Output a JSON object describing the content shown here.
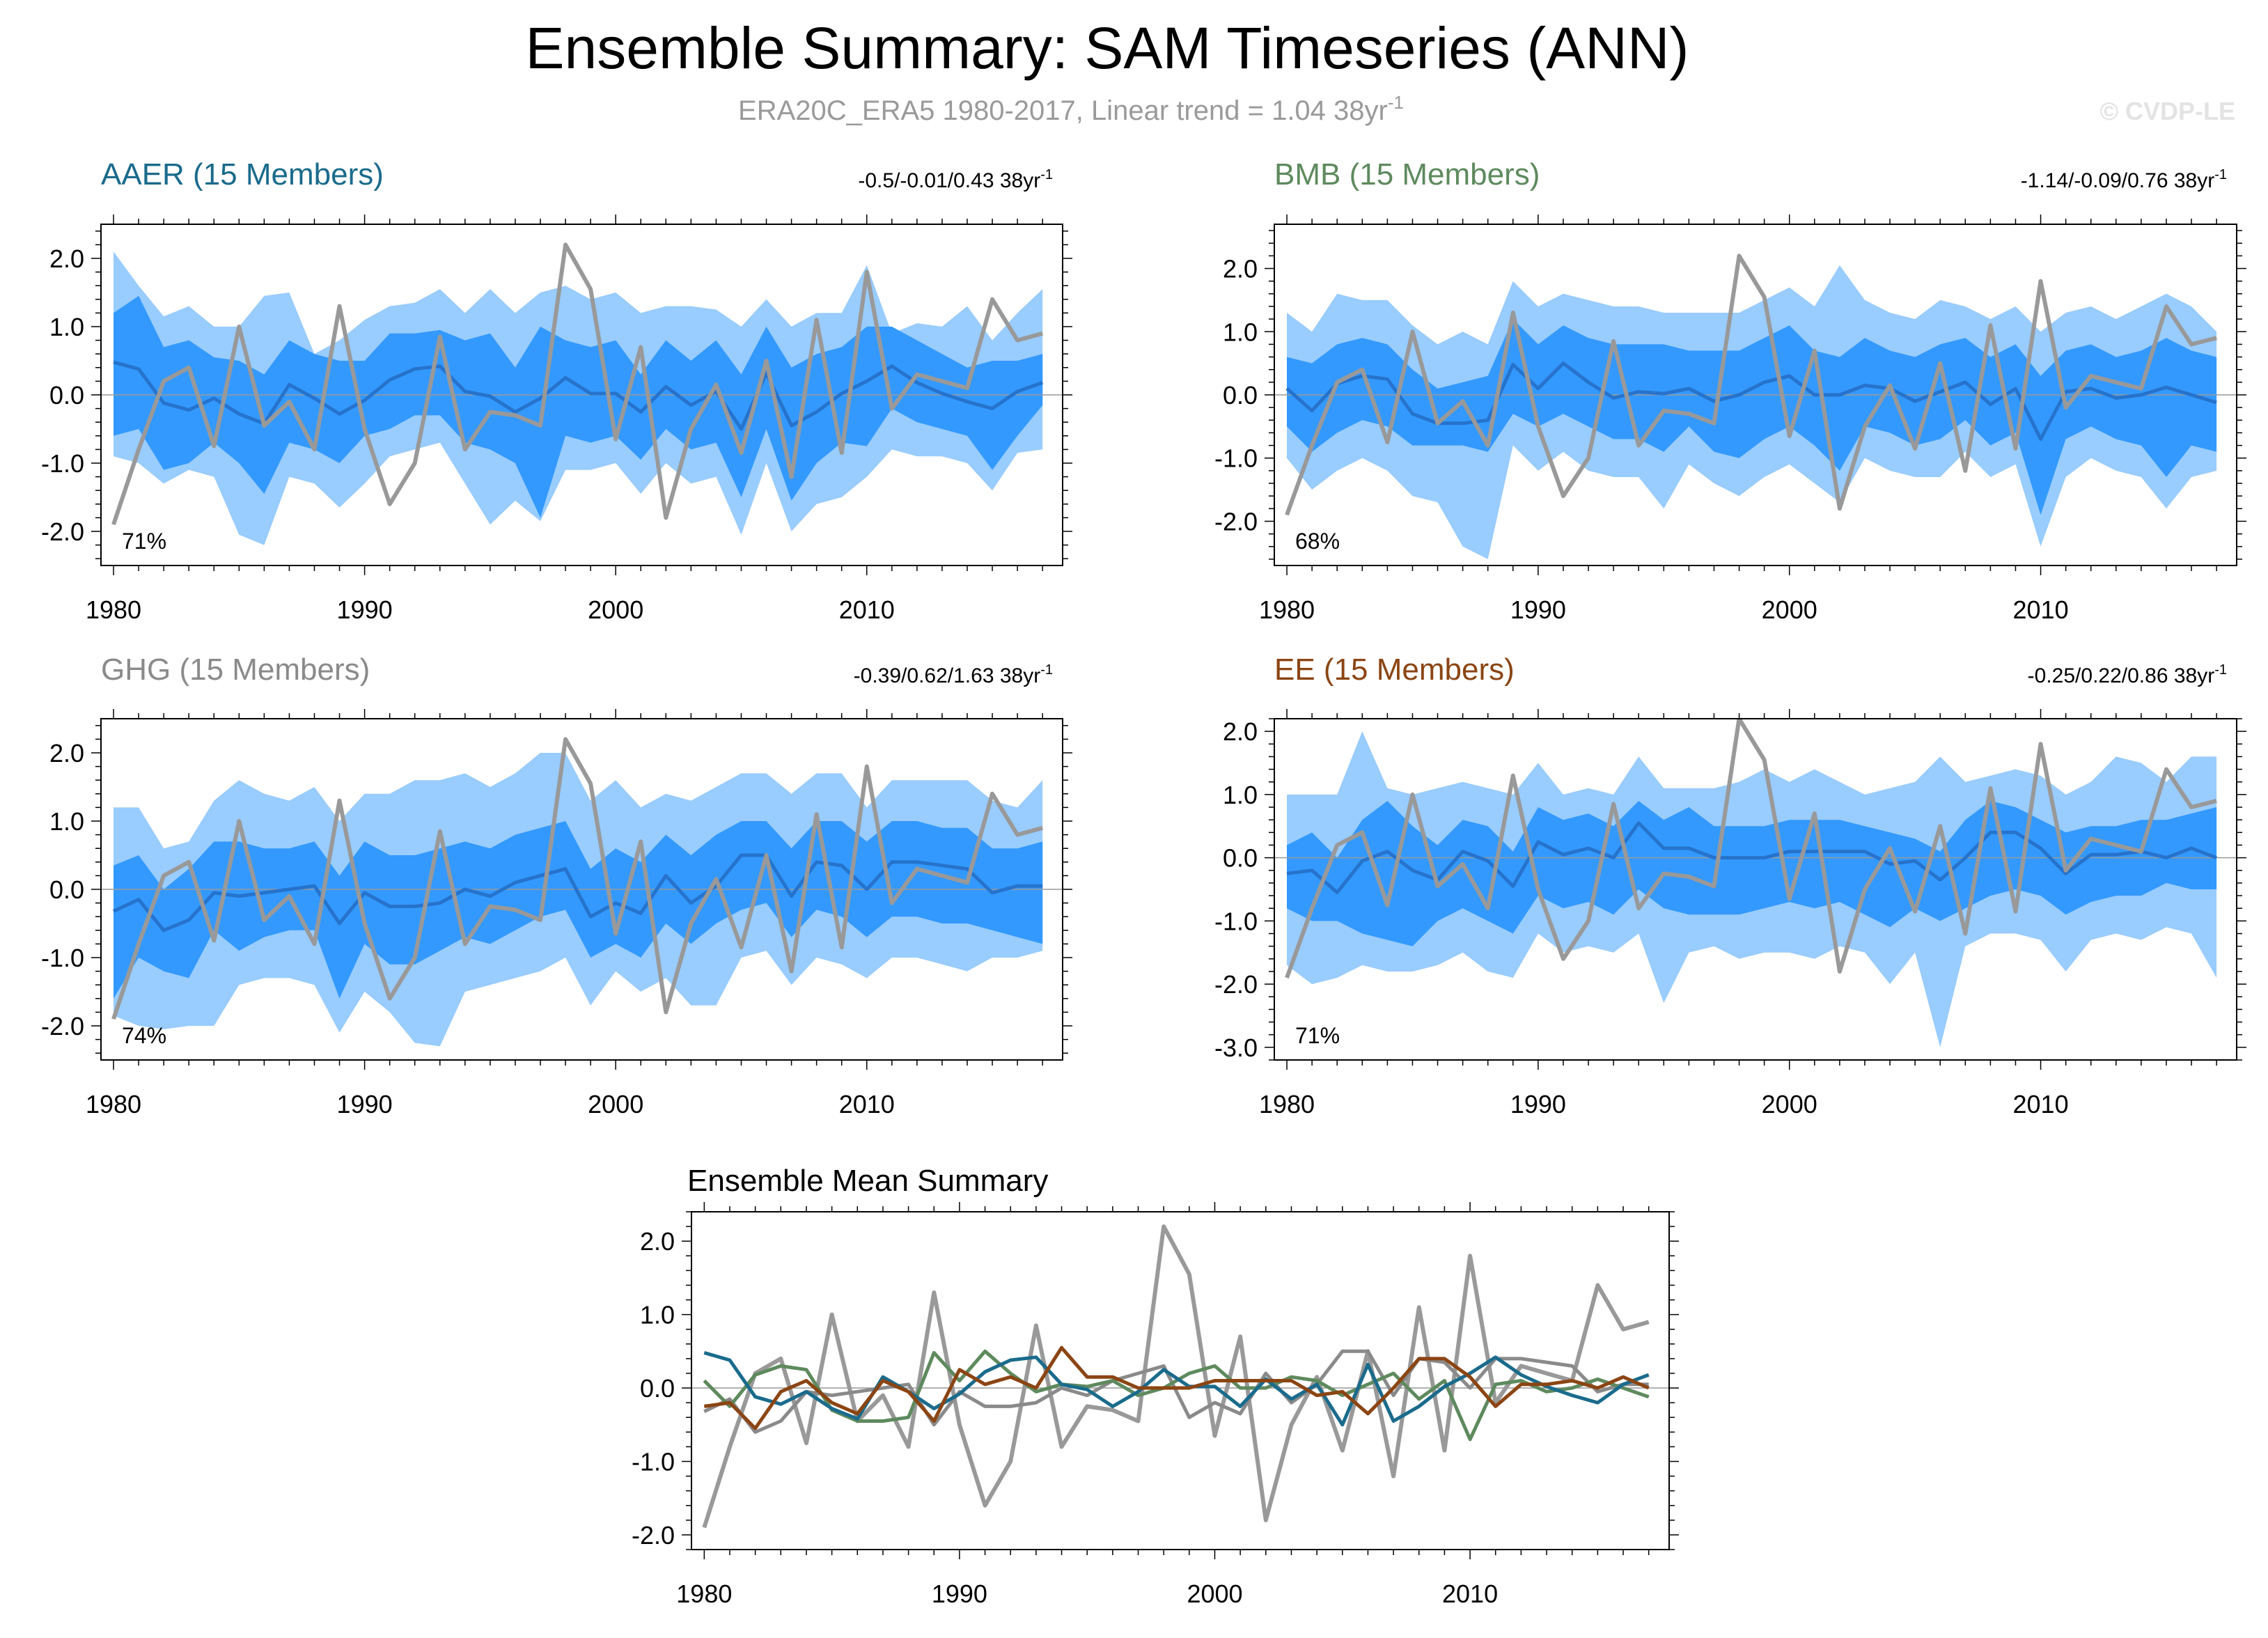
{
  "figure": {
    "title": "Ensemble Summary: SAM Timeseries (ANN)",
    "subtitle_main": "ERA20C_ERA5 1980-2017, Linear trend = 1.04 38yr",
    "subtitle_sup": "-1",
    "watermark": "© CVDP-LE"
  },
  "chart_data": {
    "type": "line",
    "x": [
      1980,
      1981,
      1982,
      1983,
      1984,
      1985,
      1986,
      1987,
      1988,
      1989,
      1990,
      1991,
      1992,
      1993,
      1994,
      1995,
      1996,
      1997,
      1998,
      1999,
      2000,
      2001,
      2002,
      2003,
      2004,
      2005,
      2006,
      2007,
      2008,
      2009,
      2010,
      2011,
      2012,
      2013,
      2014,
      2015,
      2016,
      2017
    ],
    "x_ticks": [
      1980,
      1990,
      2000,
      2010
    ],
    "x_tick_labels": [
      "1980",
      "1990",
      "2000",
      "2010"
    ],
    "observed": {
      "name": "ERA20C_ERA5",
      "color": "#999999",
      "values": [
        -1.9,
        -0.8,
        0.2,
        0.4,
        -0.75,
        1.0,
        -0.45,
        -0.1,
        -0.8,
        1.3,
        -0.5,
        -1.6,
        -1.0,
        0.85,
        -0.8,
        -0.25,
        -0.3,
        -0.45,
        2.2,
        1.55,
        -0.65,
        0.7,
        -1.8,
        -0.5,
        0.15,
        -0.85,
        0.5,
        -1.2,
        1.1,
        -0.85,
        1.8,
        -0.2,
        0.3,
        0.2,
        0.1,
        1.4,
        0.8,
        0.9
      ]
    },
    "panels": [
      {
        "name": "AAER",
        "title": "AAER (15 Members)",
        "color": "#1a6b8c",
        "trend_text": "-0.5/-0.01/0.43 38yr",
        "trend_sup": "-1",
        "percent_label": "71%",
        "ylim": [
          -2.5,
          2.5
        ],
        "yticks": [
          -2.0,
          -1.0,
          0.0,
          1.0,
          2.0
        ],
        "ytick_labels": [
          "-2.0",
          "-1.0",
          "0.0",
          "1.0",
          "2.0"
        ],
        "mean": [
          0.48,
          0.38,
          -0.12,
          -0.22,
          -0.05,
          -0.28,
          -0.42,
          0.15,
          -0.05,
          -0.28,
          -0.08,
          0.22,
          0.38,
          0.42,
          0.05,
          -0.02,
          -0.25,
          -0.05,
          0.25,
          0.02,
          0.02,
          -0.25,
          0.12,
          -0.15,
          0.05,
          -0.5,
          0.32,
          -0.45,
          -0.25,
          0.02,
          0.2,
          0.42,
          0.18,
          0.02,
          -0.1,
          -0.2,
          0.05,
          0.18
        ],
        "inner_low": [
          -0.6,
          -0.5,
          -1.1,
          -1.0,
          -0.7,
          -1.0,
          -1.45,
          -0.7,
          -0.8,
          -1.0,
          -0.6,
          -0.5,
          -0.3,
          -0.3,
          -0.7,
          -0.8,
          -1.0,
          -1.8,
          -0.6,
          -0.7,
          -0.6,
          -0.95,
          -0.5,
          -0.8,
          -0.7,
          -1.5,
          -0.5,
          -1.55,
          -1.0,
          -0.7,
          -0.75,
          -0.2,
          -0.4,
          -0.5,
          -0.6,
          -1.1,
          -0.6,
          -0.15
        ],
        "inner_high": [
          1.2,
          1.45,
          0.7,
          0.8,
          0.55,
          0.5,
          0.3,
          0.8,
          0.6,
          0.5,
          0.5,
          0.9,
          0.9,
          0.95,
          0.8,
          0.9,
          0.4,
          1.0,
          0.8,
          0.7,
          0.8,
          0.3,
          0.8,
          0.5,
          0.8,
          0.3,
          1.0,
          0.4,
          0.6,
          0.7,
          1.0,
          1.0,
          0.8,
          0.6,
          0.4,
          0.5,
          0.5,
          0.6
        ],
        "outer_low": [
          -0.9,
          -1.0,
          -1.3,
          -1.1,
          -1.2,
          -2.05,
          -2.2,
          -1.2,
          -1.3,
          -1.65,
          -1.3,
          -0.9,
          -0.8,
          -0.7,
          -1.3,
          -1.9,
          -1.55,
          -1.85,
          -1.1,
          -1.1,
          -1.0,
          -1.45,
          -1.0,
          -1.3,
          -1.2,
          -2.05,
          -1.0,
          -2.0,
          -1.6,
          -1.5,
          -1.2,
          -0.8,
          -0.9,
          -0.9,
          -1.0,
          -1.4,
          -0.85,
          -0.8
        ],
        "outer_high": [
          2.1,
          1.6,
          1.15,
          1.3,
          1.0,
          1.0,
          1.45,
          1.5,
          0.6,
          0.8,
          1.1,
          1.3,
          1.35,
          1.55,
          1.2,
          1.55,
          1.2,
          1.5,
          1.6,
          1.4,
          1.5,
          1.2,
          1.3,
          1.3,
          1.25,
          1.0,
          1.4,
          1.0,
          1.2,
          1.2,
          1.9,
          0.9,
          1.05,
          1.0,
          1.3,
          0.8,
          1.2,
          1.55
        ]
      },
      {
        "name": "BMB",
        "title": "BMB (15 Members)",
        "color": "#5e8a5e",
        "trend_text": "-1.14/-0.09/0.76 38yr",
        "trend_sup": "-1",
        "percent_label": "68%",
        "ylim": [
          -2.7,
          2.7
        ],
        "yticks": [
          -2.0,
          -1.0,
          0.0,
          1.0,
          2.0
        ],
        "ytick_labels": [
          "-2.0",
          "-1.0",
          "0.0",
          "1.0",
          "2.0"
        ],
        "mean": [
          0.1,
          -0.25,
          0.18,
          0.3,
          0.25,
          -0.3,
          -0.45,
          -0.45,
          -0.4,
          0.48,
          0.1,
          0.5,
          0.2,
          -0.05,
          0.05,
          0.02,
          0.1,
          -0.1,
          0.0,
          0.2,
          0.3,
          0.0,
          0.0,
          0.15,
          0.1,
          -0.1,
          0.05,
          0.2,
          -0.15,
          0.1,
          -0.7,
          0.05,
          0.1,
          -0.05,
          0.0,
          0.12,
          0.0,
          -0.12
        ],
        "inner_low": [
          -0.5,
          -0.9,
          -0.6,
          -0.4,
          -0.5,
          -0.8,
          -0.8,
          -0.8,
          -0.9,
          -0.3,
          -0.5,
          -0.3,
          -0.5,
          -0.7,
          -0.7,
          -0.9,
          -0.5,
          -0.9,
          -1.0,
          -0.7,
          -0.5,
          -0.8,
          -1.2,
          -0.5,
          -0.6,
          -0.8,
          -0.7,
          -0.4,
          -0.8,
          -0.6,
          -1.9,
          -0.7,
          -0.5,
          -0.7,
          -0.8,
          -1.3,
          -0.8,
          -0.9
        ],
        "inner_high": [
          0.6,
          0.5,
          0.8,
          0.9,
          0.8,
          0.4,
          0.1,
          0.2,
          0.3,
          1.2,
          0.8,
          1.1,
          0.9,
          0.8,
          0.8,
          0.8,
          0.7,
          0.7,
          0.7,
          0.9,
          1.1,
          0.7,
          0.6,
          0.9,
          0.7,
          0.6,
          0.8,
          0.9,
          0.6,
          0.8,
          0.3,
          0.7,
          0.8,
          0.6,
          0.7,
          0.9,
          0.7,
          0.6
        ],
        "outer_low": [
          -1.0,
          -1.5,
          -1.2,
          -1.0,
          -1.2,
          -1.6,
          -1.7,
          -2.4,
          -2.6,
          -0.8,
          -1.2,
          -0.9,
          -1.2,
          -1.3,
          -1.3,
          -1.8,
          -1.1,
          -1.4,
          -1.6,
          -1.3,
          -1.1,
          -1.4,
          -1.7,
          -1.0,
          -1.2,
          -1.3,
          -1.3,
          -0.9,
          -1.3,
          -1.1,
          -2.4,
          -1.3,
          -1.0,
          -1.2,
          -1.3,
          -1.8,
          -1.3,
          -1.2
        ],
        "outer_high": [
          1.3,
          1.0,
          1.6,
          1.5,
          1.5,
          1.1,
          0.8,
          1.0,
          0.8,
          1.8,
          1.4,
          1.6,
          1.5,
          1.4,
          1.4,
          1.3,
          1.3,
          1.3,
          1.3,
          1.5,
          1.7,
          1.4,
          2.05,
          1.5,
          1.3,
          1.2,
          1.5,
          1.4,
          1.2,
          1.4,
          1.0,
          1.3,
          1.4,
          1.2,
          1.4,
          1.6,
          1.4,
          1.0
        ]
      },
      {
        "name": "GHG",
        "title": "GHG (15 Members)",
        "color": "#8a8a8a",
        "trend_text": "-0.39/0.62/1.63 38yr",
        "trend_sup": "-1",
        "percent_label": "74%",
        "ylim": [
          -2.5,
          2.5
        ],
        "yticks": [
          -2.0,
          -1.0,
          0.0,
          1.0,
          2.0
        ],
        "ytick_labels": [
          "-2.0",
          "-1.0",
          "0.0",
          "1.0",
          "2.0"
        ],
        "mean": [
          -0.32,
          -0.15,
          -0.6,
          -0.45,
          -0.05,
          -0.1,
          -0.05,
          0.0,
          0.05,
          -0.5,
          -0.05,
          -0.25,
          -0.25,
          -0.2,
          0.0,
          -0.1,
          0.1,
          0.2,
          0.3,
          -0.4,
          -0.2,
          -0.35,
          0.2,
          -0.2,
          0.05,
          0.5,
          0.5,
          -0.1,
          0.4,
          0.35,
          0.0,
          0.4,
          0.4,
          0.35,
          0.3,
          -0.05,
          0.05,
          0.05
        ],
        "inner_low": [
          -1.6,
          -1.0,
          -1.2,
          -1.3,
          -0.6,
          -0.9,
          -0.7,
          -0.6,
          -0.6,
          -1.6,
          -0.8,
          -1.1,
          -1.1,
          -0.9,
          -0.7,
          -0.8,
          -0.6,
          -0.4,
          -0.3,
          -1.0,
          -0.8,
          -1.0,
          -0.5,
          -0.8,
          -0.5,
          -0.3,
          -0.2,
          -0.7,
          -0.3,
          -0.4,
          -0.7,
          -0.4,
          -0.4,
          -0.5,
          -0.5,
          -0.6,
          -0.7,
          -0.8
        ],
        "inner_high": [
          0.35,
          0.5,
          0.0,
          0.3,
          0.7,
          0.7,
          0.6,
          0.6,
          0.7,
          0.2,
          0.7,
          0.5,
          0.5,
          0.6,
          0.7,
          0.6,
          0.8,
          0.9,
          1.0,
          0.3,
          0.6,
          0.4,
          0.8,
          0.5,
          0.8,
          1.0,
          1.0,
          0.6,
          1.0,
          1.0,
          0.7,
          1.0,
          1.0,
          0.9,
          0.9,
          0.6,
          0.6,
          0.7
        ],
        "outer_low": [
          -1.85,
          -2.0,
          -2.05,
          -2.0,
          -2.0,
          -1.4,
          -1.3,
          -1.3,
          -1.4,
          -2.1,
          -1.5,
          -1.8,
          -2.25,
          -2.3,
          -1.5,
          -1.4,
          -1.3,
          -1.2,
          -1.0,
          -1.7,
          -1.2,
          -1.5,
          -1.3,
          -1.7,
          -1.7,
          -1.0,
          -0.9,
          -1.4,
          -1.0,
          -1.1,
          -1.3,
          -1.0,
          -1.0,
          -1.1,
          -1.2,
          -1.0,
          -1.0,
          -0.9
        ],
        "outer_high": [
          1.2,
          1.2,
          0.6,
          0.7,
          1.3,
          1.6,
          1.4,
          1.3,
          1.5,
          1.0,
          1.4,
          1.4,
          1.6,
          1.6,
          1.7,
          1.5,
          1.7,
          2.0,
          2.0,
          1.3,
          1.6,
          1.2,
          1.4,
          1.3,
          1.5,
          1.7,
          1.7,
          1.4,
          1.7,
          1.7,
          1.2,
          1.6,
          1.6,
          1.6,
          1.6,
          1.3,
          1.2,
          1.6
        ]
      },
      {
        "name": "EE",
        "title": "EE (15 Members)",
        "color": "#8b4513",
        "trend_text": "-0.25/0.22/0.86 38yr",
        "trend_sup": "-1",
        "percent_label": "71%",
        "ylim": [
          -3.2,
          2.2
        ],
        "yticks": [
          -3.0,
          -2.0,
          -1.0,
          0.0,
          1.0,
          2.0
        ],
        "ytick_labels": [
          "-3.0",
          "-2.0",
          "-1.0",
          "0.0",
          "1.0",
          "2.0"
        ],
        "mean": [
          -0.25,
          -0.2,
          -0.55,
          -0.05,
          0.1,
          -0.2,
          -0.35,
          0.1,
          -0.05,
          -0.45,
          0.25,
          0.05,
          0.15,
          0.0,
          0.55,
          0.15,
          0.15,
          0.0,
          0.0,
          0.0,
          0.1,
          0.1,
          0.1,
          0.1,
          -0.1,
          -0.05,
          -0.35,
          0.0,
          0.4,
          0.4,
          0.15,
          -0.25,
          0.05,
          0.05,
          0.1,
          0.0,
          0.15,
          0.0
        ],
        "inner_low": [
          -0.8,
          -1.0,
          -1.0,
          -1.2,
          -1.3,
          -1.4,
          -1.0,
          -0.8,
          -1.0,
          -1.2,
          -0.6,
          -0.8,
          -0.7,
          -0.9,
          -0.5,
          -0.8,
          -0.9,
          -0.9,
          -0.9,
          -0.8,
          -0.7,
          -0.8,
          -0.7,
          -0.9,
          -1.1,
          -0.8,
          -1.0,
          -0.8,
          -0.6,
          -0.5,
          -0.6,
          -0.9,
          -0.7,
          -0.6,
          -0.6,
          -0.4,
          -0.5,
          -0.5
        ],
        "inner_high": [
          0.2,
          0.4,
          0.0,
          0.6,
          0.9,
          0.5,
          0.2,
          0.6,
          0.5,
          0.1,
          0.8,
          0.6,
          0.7,
          0.5,
          0.9,
          0.6,
          0.8,
          0.5,
          0.5,
          0.5,
          0.6,
          0.6,
          0.6,
          0.5,
          0.4,
          0.3,
          0.1,
          0.6,
          0.9,
          0.8,
          0.6,
          0.4,
          0.5,
          0.5,
          0.6,
          0.6,
          0.7,
          0.8
        ],
        "outer_low": [
          -1.7,
          -2.0,
          -1.9,
          -1.7,
          -1.8,
          -1.8,
          -1.7,
          -1.5,
          -1.8,
          -1.9,
          -1.2,
          -1.5,
          -1.4,
          -1.5,
          -1.2,
          -2.3,
          -1.5,
          -1.4,
          -1.6,
          -1.5,
          -1.5,
          -1.6,
          -1.4,
          -1.5,
          -2.0,
          -1.5,
          -3.0,
          -1.4,
          -1.2,
          -1.2,
          -1.3,
          -1.8,
          -1.3,
          -1.2,
          -1.3,
          -1.1,
          -1.2,
          -1.9
        ],
        "outer_high": [
          1.0,
          1.0,
          1.0,
          2.0,
          1.1,
          1.0,
          1.1,
          1.2,
          1.1,
          1.0,
          1.5,
          1.0,
          1.1,
          1.0,
          1.6,
          1.1,
          1.1,
          1.1,
          1.2,
          1.4,
          1.2,
          1.4,
          1.2,
          1.0,
          1.1,
          1.2,
          1.6,
          1.2,
          1.3,
          1.4,
          1.3,
          1.0,
          1.2,
          1.6,
          1.5,
          1.2,
          1.6,
          1.6
        ]
      }
    ],
    "mean_summary": {
      "title": "Ensemble Mean Summary",
      "ylim": [
        -2.2,
        2.4
      ],
      "yticks": [
        -2.0,
        -1.0,
        0.0,
        1.0,
        2.0
      ],
      "ytick_labels": [
        "-2.0",
        "-1.0",
        "0.0",
        "1.0",
        "2.0"
      ],
      "series": [
        "AAER",
        "BMB",
        "GHG",
        "EE",
        "observed"
      ]
    },
    "colors": {
      "outer_band": "#99ccff",
      "inner_band": "#3399ff",
      "mean_line": "#2673cc",
      "observed_line": "#999999",
      "zero_line": "#999999"
    }
  }
}
